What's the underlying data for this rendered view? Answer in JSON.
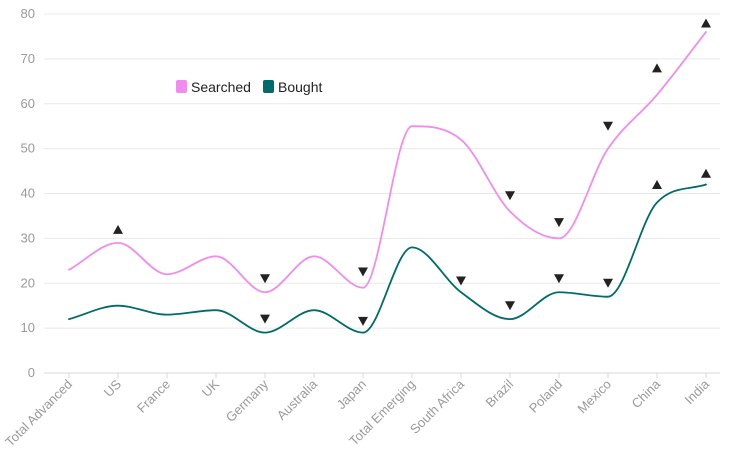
{
  "chart_data": {
    "type": "line",
    "title": "",
    "xlabel": "",
    "ylabel": "",
    "categories": [
      "Total Advanced",
      "US",
      "France",
      "UK",
      "Germany",
      "Australia",
      "Japan",
      "Total Emerging",
      "South Africa",
      "Brazil",
      "Poland",
      "Mexico",
      "China",
      "India"
    ],
    "ylim": [
      0,
      80
    ],
    "yticks": [
      0,
      10,
      20,
      30,
      40,
      50,
      60,
      70,
      80
    ],
    "grid": true,
    "legend_position": "top-left",
    "series": [
      {
        "name": "Searched",
        "color": "#f08cf0",
        "values": [
          23,
          29,
          22,
          26,
          18,
          26,
          19,
          55,
          52,
          36,
          30,
          50,
          62,
          76
        ]
      },
      {
        "name": "Bought",
        "color": "#006b6b",
        "values": [
          12,
          15,
          13,
          14,
          9,
          14,
          9,
          28,
          18,
          12,
          18,
          17,
          38,
          42
        ]
      }
    ],
    "annotations": [
      {
        "category": "US",
        "marker": "up",
        "y": 32
      },
      {
        "category": "Germany",
        "marker": "down",
        "y": 21
      },
      {
        "category": "Germany",
        "marker": "down",
        "y": 12
      },
      {
        "category": "Japan",
        "marker": "down",
        "y": 22.5
      },
      {
        "category": "Japan",
        "marker": "down",
        "y": 11.5
      },
      {
        "category": "South Africa",
        "marker": "down",
        "y": 20.5
      },
      {
        "category": "Brazil",
        "marker": "down",
        "y": 39.5
      },
      {
        "category": "Brazil",
        "marker": "down",
        "y": 15
      },
      {
        "category": "Poland",
        "marker": "down",
        "y": 33.5
      },
      {
        "category": "Poland",
        "marker": "down",
        "y": 21
      },
      {
        "category": "Mexico",
        "marker": "down",
        "y": 55
      },
      {
        "category": "Mexico",
        "marker": "down",
        "y": 20
      },
      {
        "category": "China",
        "marker": "up",
        "y": 68
      },
      {
        "category": "China",
        "marker": "up",
        "y": 42
      },
      {
        "category": "India",
        "marker": "up",
        "y": 78
      },
      {
        "category": "India",
        "marker": "up",
        "y": 44.5
      }
    ],
    "marker_color": "#222222"
  }
}
